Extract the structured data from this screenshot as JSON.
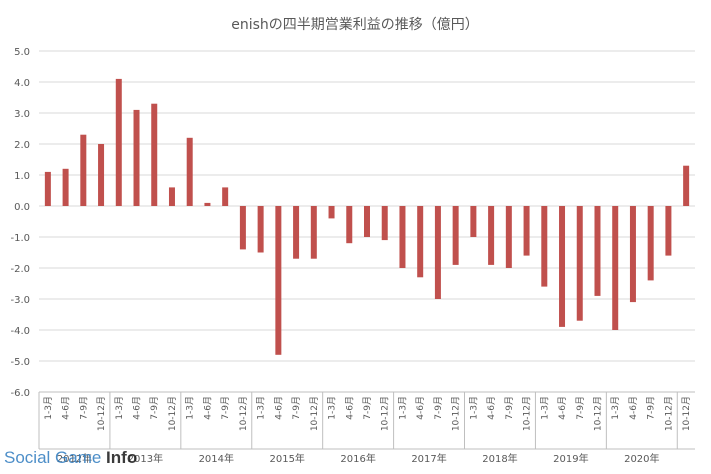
{
  "chart_data": {
    "type": "bar",
    "title": "enishの四半期営業利益の推移（億円）",
    "xlabel": "",
    "ylabel": "",
    "ylim": [
      -6.0,
      5.0
    ],
    "ytick_step": 1.0,
    "grid": true,
    "legend": "none",
    "bar_color": "#c0504d",
    "quarter_labels": [
      "1-3月",
      "4-6月",
      "7-9月",
      "10-12月",
      "1-3月",
      "4-6月",
      "7-9月",
      "10-12月",
      "1-3月",
      "4-6月",
      "7-9月",
      "10-12月",
      "1-3月",
      "4-6月",
      "7-9月",
      "10-12月",
      "1-3月",
      "4-6月",
      "7-9月",
      "10-12月",
      "1-3月",
      "4-6月",
      "7-9月",
      "10-12月",
      "1-3月",
      "4-6月",
      "7-9月",
      "10-12月",
      "1-3月",
      "4-6月",
      "7-9月",
      "10-12月",
      "1-3月",
      "4-6月",
      "7-9月",
      "10-12月"
    ],
    "year_labels": [
      "2012年",
      "2013年",
      "2014年",
      "2015年",
      "2016年",
      "2017年",
      "2018年",
      "2019年",
      "2020年"
    ],
    "values": [
      1.1,
      1.2,
      2.3,
      2.0,
      4.1,
      3.1,
      3.3,
      0.6,
      2.2,
      0.1,
      0.6,
      -1.4,
      -1.5,
      -4.8,
      -1.7,
      -1.7,
      -0.4,
      -1.2,
      -1.0,
      -1.1,
      -2.0,
      -2.3,
      -3.0,
      -1.9,
      -1.0,
      -1.9,
      -2.0,
      -1.6,
      -2.6,
      -3.9,
      -3.7,
      -2.9,
      -4.0,
      -3.1,
      -2.4,
      -1.6
    ],
    "extra_bar_value": 1.3,
    "extra_bar_label": "10-12月"
  },
  "watermark": {
    "part1": "Social Game ",
    "part2": "Info"
  }
}
